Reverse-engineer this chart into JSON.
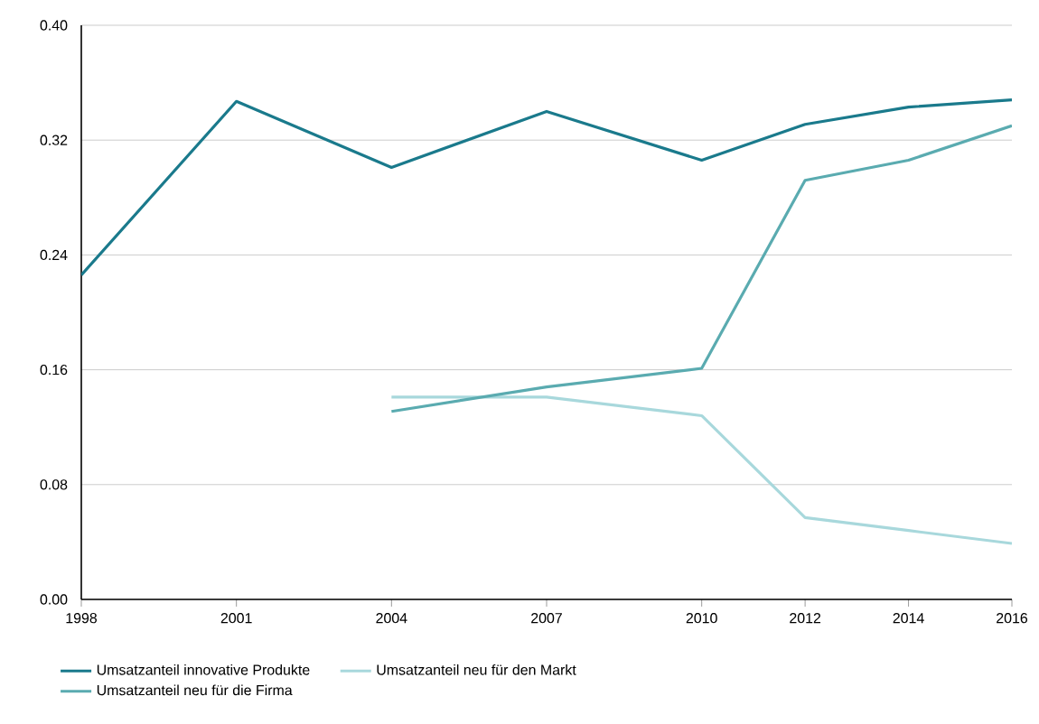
{
  "chart_data": {
    "type": "line",
    "xlim": [
      1998,
      2016
    ],
    "xticks": [
      1998,
      2001,
      2004,
      2007,
      2010,
      2012,
      2014,
      2016
    ],
    "ylim": [
      0,
      0.4
    ],
    "yticks": [
      {
        "value": 0,
        "label": "0.00"
      },
      {
        "value": 0.08,
        "label": "0.08"
      },
      {
        "value": 0.16,
        "label": "0.16"
      },
      {
        "value": 0.24,
        "label": "0.24"
      },
      {
        "value": 0.32,
        "label": "0.32"
      },
      {
        "value": 0.4,
        "label": "0.40"
      }
    ],
    "grid": "y",
    "legend": "bottom",
    "marker": "none",
    "line_style": "solid",
    "series": [
      {
        "name": "Umsatzanteil innovative Produkte",
        "color": "#1a7a8c",
        "x": [
          1998,
          2001,
          2004,
          2007,
          2010,
          2012,
          2014,
          2016
        ],
        "values": [
          0.226,
          0.347,
          0.301,
          0.34,
          0.306,
          0.331,
          0.343,
          0.348
        ]
      },
      {
        "name": "Umsatzanteil neu für die Firma",
        "color": "#5aabb0",
        "x": [
          2004,
          2007,
          2010,
          2012,
          2014,
          2016
        ],
        "values": [
          0.131,
          0.148,
          0.161,
          0.292,
          0.306,
          0.33
        ]
      },
      {
        "name": "Umsatzanteil neu für den Markt",
        "color": "#a8d8dc",
        "x": [
          2004,
          2007,
          2010,
          2012,
          2014,
          2016
        ],
        "values": [
          0.141,
          0.141,
          0.128,
          0.057,
          0.048,
          0.039
        ]
      }
    ]
  }
}
